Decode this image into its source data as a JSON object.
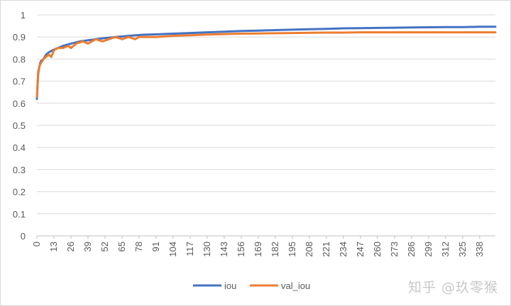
{
  "chart_data": {
    "type": "line",
    "title": "",
    "xlabel": "",
    "ylabel": "",
    "ylim": [
      0,
      1
    ],
    "yticks": [
      "0",
      "0.1",
      "0.2",
      "0.3",
      "0.4",
      "0.5",
      "0.6",
      "0.7",
      "0.8",
      "0.9",
      "1"
    ],
    "xlim": [
      0,
      350
    ],
    "xticks": [
      "0",
      "13",
      "26",
      "39",
      "52",
      "65",
      "78",
      "91",
      "104",
      "117",
      "130",
      "143",
      "156",
      "169",
      "182",
      "195",
      "208",
      "221",
      "234",
      "247",
      "260",
      "273",
      "286",
      "299",
      "312",
      "325",
      "338"
    ],
    "grid": true,
    "legend_position": "bottom",
    "series": [
      {
        "name": "iou",
        "color": "#4472c4",
        "x": [
          0,
          1,
          2,
          3,
          5,
          7,
          9,
          12,
          16,
          20,
          26,
          33,
          39,
          45,
          52,
          60,
          70,
          80,
          91,
          104,
          117,
          130,
          143,
          156,
          169,
          182,
          195,
          208,
          221,
          234,
          247,
          260,
          273,
          286,
          299,
          312,
          325,
          338,
          350
        ],
        "y": [
          0.62,
          0.74,
          0.77,
          0.79,
          0.8,
          0.82,
          0.83,
          0.84,
          0.85,
          0.86,
          0.87,
          0.88,
          0.885,
          0.89,
          0.895,
          0.9,
          0.905,
          0.91,
          0.912,
          0.915,
          0.918,
          0.921,
          0.924,
          0.927,
          0.929,
          0.931,
          0.933,
          0.935,
          0.937,
          0.939,
          0.94,
          0.941,
          0.942,
          0.943,
          0.944,
          0.945,
          0.945,
          0.946,
          0.946
        ]
      },
      {
        "name": "val_iou",
        "color": "#ed7d31",
        "x": [
          0,
          1,
          2,
          3,
          5,
          7,
          9,
          11,
          13,
          16,
          20,
          24,
          26,
          30,
          35,
          39,
          45,
          50,
          55,
          60,
          65,
          70,
          75,
          78,
          80,
          91,
          104,
          117,
          130,
          143,
          156,
          169,
          182,
          195,
          208,
          221,
          234,
          247,
          260,
          273,
          286,
          299,
          312,
          325,
          338,
          350
        ],
        "y": [
          0.63,
          0.73,
          0.77,
          0.78,
          0.8,
          0.81,
          0.82,
          0.81,
          0.84,
          0.85,
          0.85,
          0.86,
          0.85,
          0.87,
          0.88,
          0.87,
          0.89,
          0.88,
          0.89,
          0.9,
          0.89,
          0.9,
          0.89,
          0.9,
          0.9,
          0.9,
          0.905,
          0.908,
          0.911,
          0.913,
          0.915,
          0.916,
          0.917,
          0.918,
          0.919,
          0.92,
          0.92,
          0.921,
          0.921,
          0.921,
          0.921,
          0.921,
          0.921,
          0.921,
          0.921,
          0.921
        ]
      }
    ]
  },
  "watermark": "知乎 @玖零猴"
}
